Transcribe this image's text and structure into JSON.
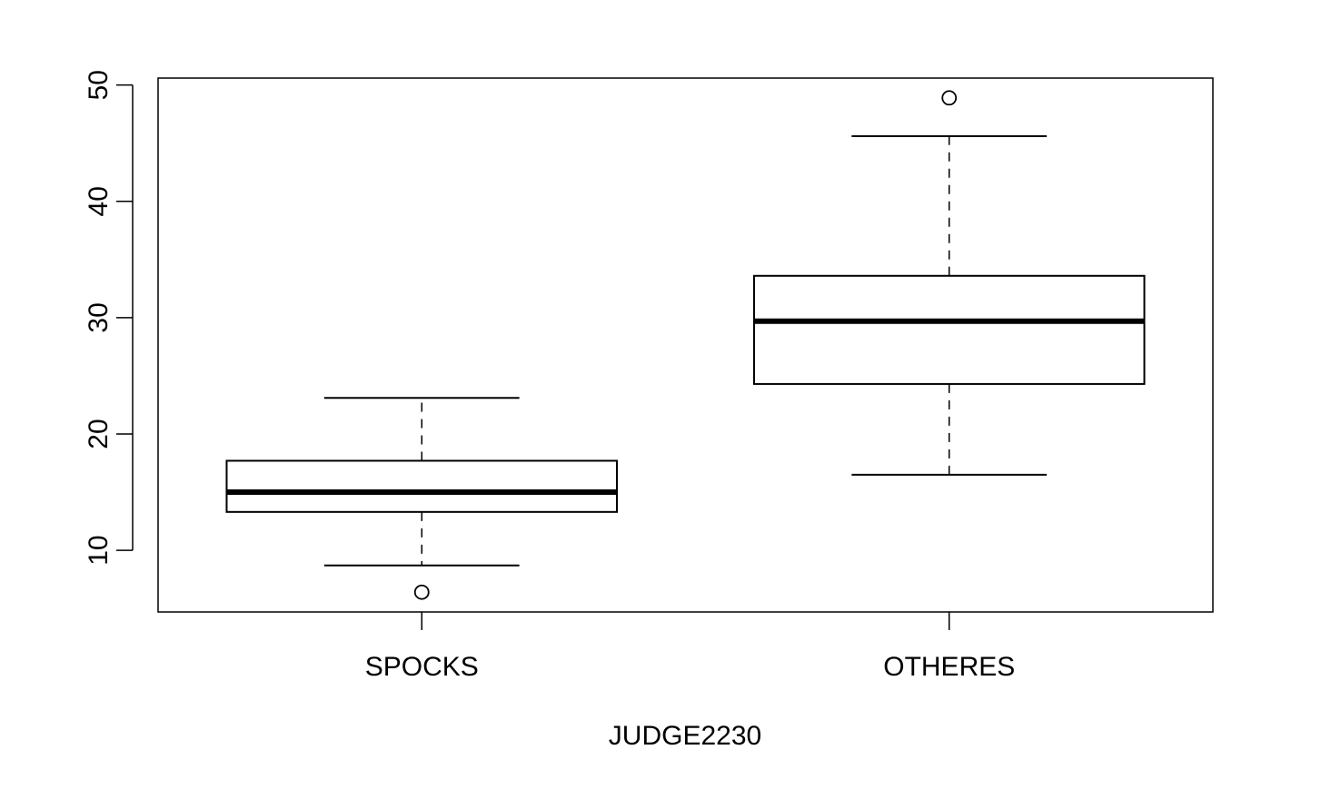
{
  "chart_data": {
    "type": "box",
    "xlabel": "JUDGE2230",
    "ylabel": "",
    "ylim": [
      4.7,
      50.6
    ],
    "yticks": [
      10,
      20,
      30,
      40,
      50
    ],
    "grid": false,
    "categories": [
      "SPOCKS",
      "OTHERES"
    ],
    "boxes": [
      {
        "category": "SPOCKS",
        "whisker_low": 8.7,
        "q1": 13.3,
        "median": 15.0,
        "q3": 17.7,
        "whisker_high": 23.1,
        "outliers": [
          6.4
        ]
      },
      {
        "category": "OTHERES",
        "whisker_low": 16.5,
        "q1": 24.3,
        "median": 29.7,
        "q3": 33.6,
        "whisker_high": 45.6,
        "outliers": [
          48.9
        ]
      }
    ]
  }
}
